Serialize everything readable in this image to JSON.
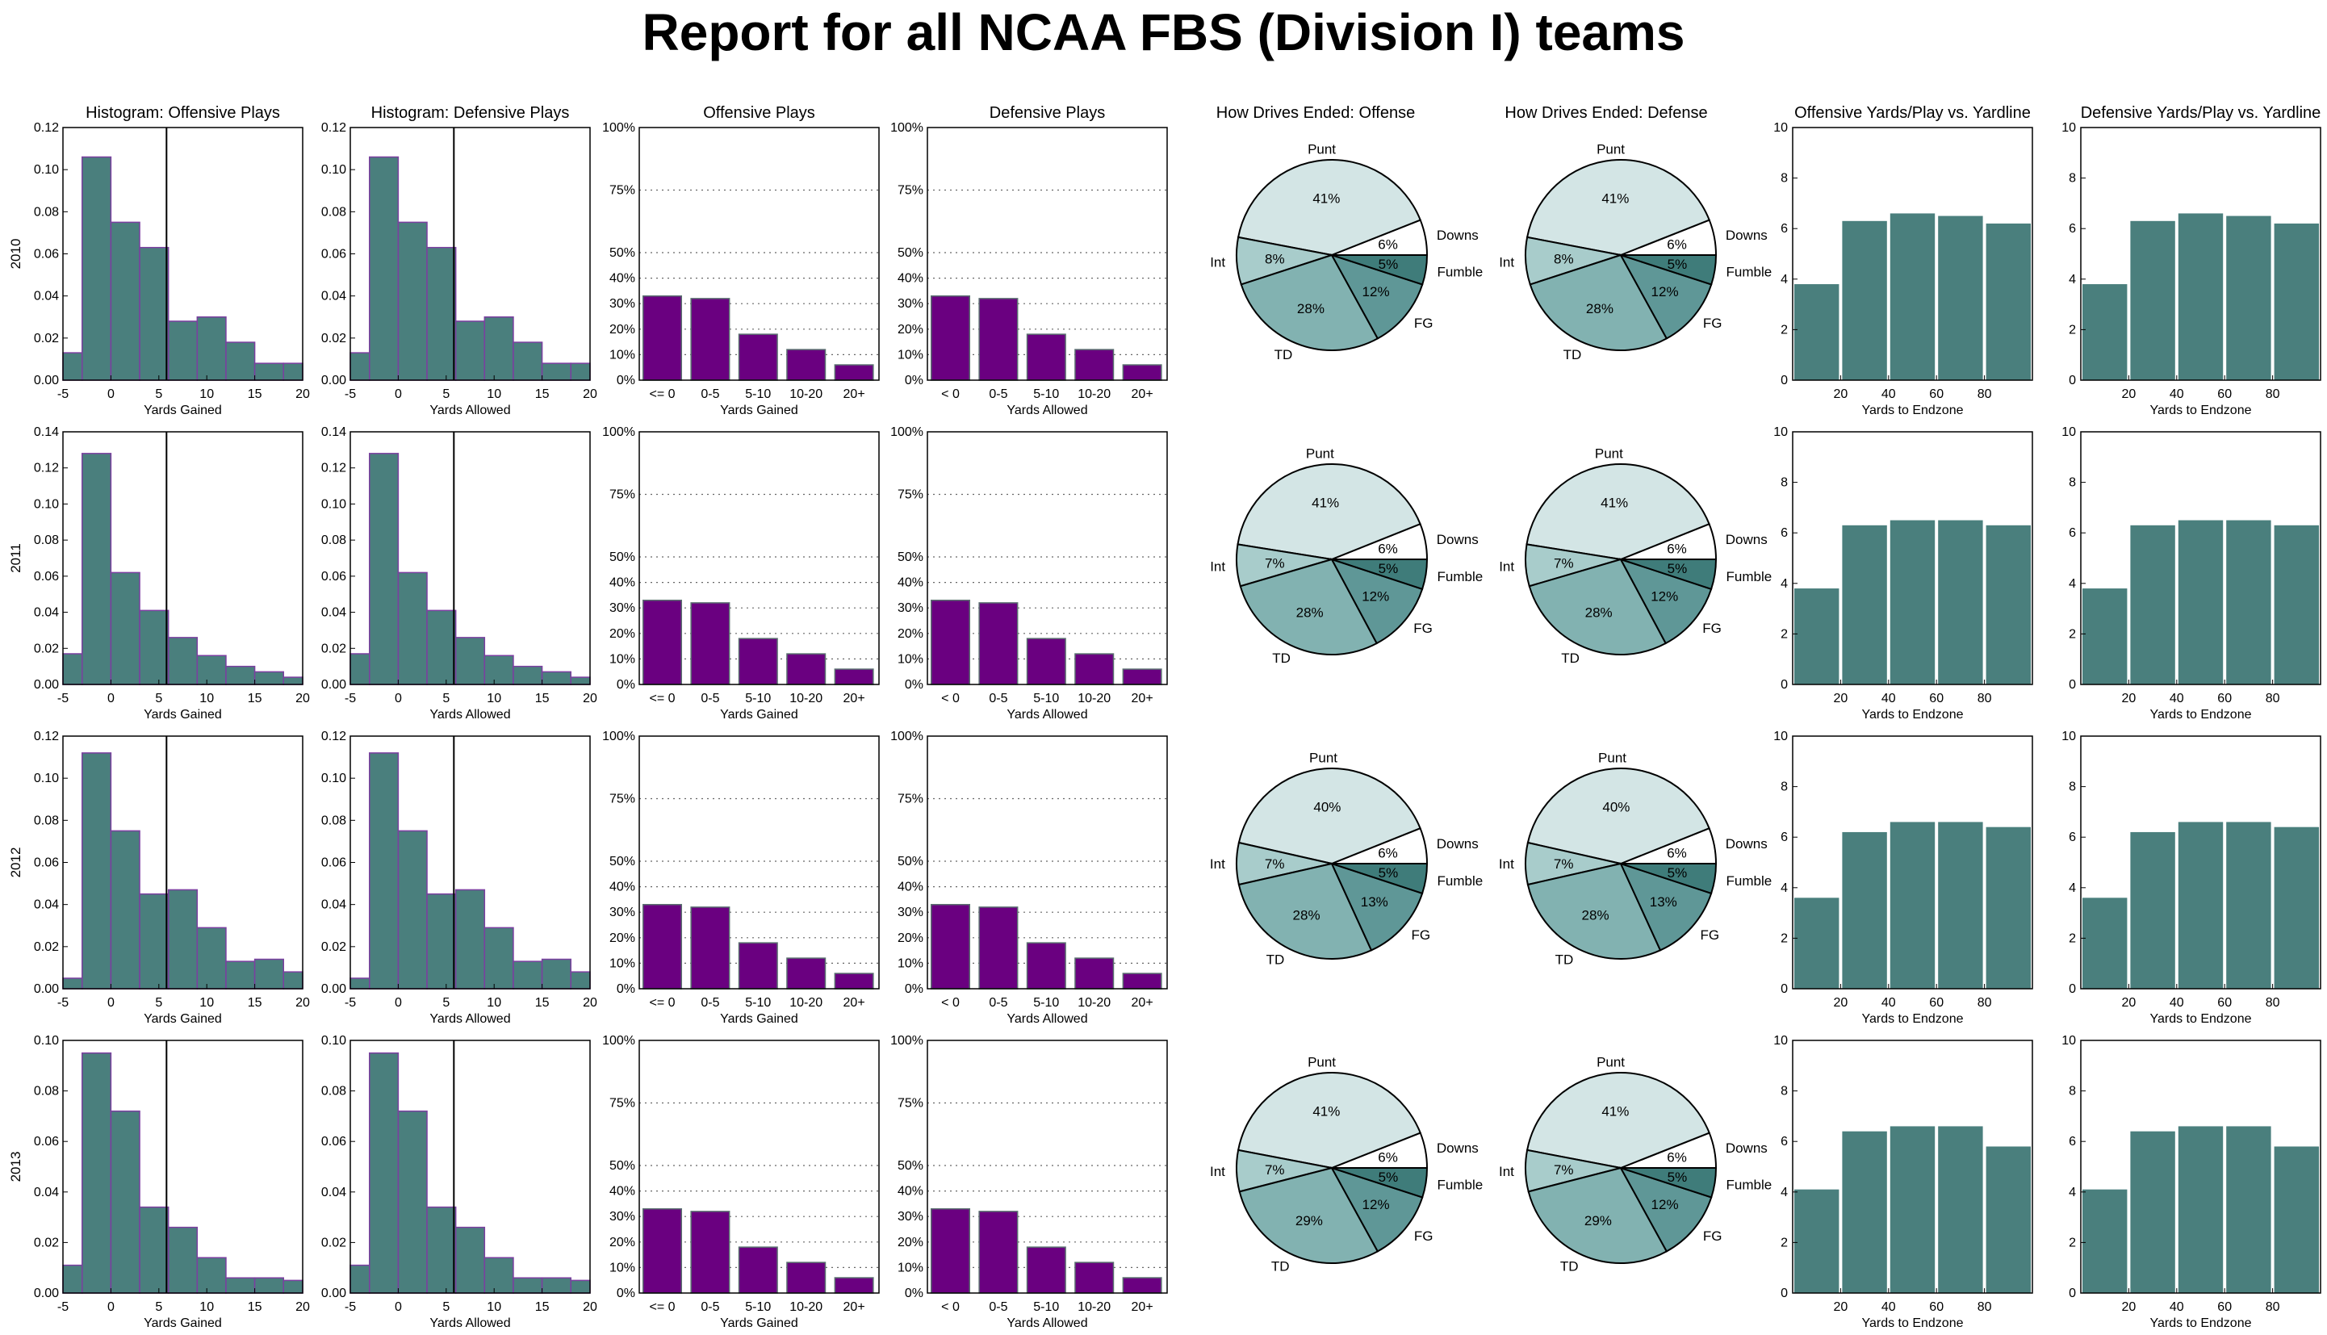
{
  "title": "Report for all NCAA FBS (Division I) teams",
  "colors": {
    "bar": "#4a7f7d",
    "bar_edge": "#7b3fa0",
    "purple": "#6a0080",
    "pie_punt": "#d3e5e5",
    "pie_downs": "#ffffff",
    "pie_fumble": "#3f7c7a",
    "pie_fg": "#5f9797",
    "pie_td": "#82b2b1",
    "pie_int": "#a8cccb"
  },
  "column_titles": [
    "Histogram: Offensive Plays",
    "Histogram: Defensive Plays",
    "Offensive Plays",
    "Defensive Plays",
    "How Drives Ended: Offense",
    "How Drives Ended: Defense",
    "Offensive Yards/Play vs. Yardline",
    "Defensive Yards/Play vs. Yardline"
  ],
  "row_labels": [
    "2010",
    "2011",
    "2012",
    "2013"
  ],
  "xlabels": {
    "hist_off": "Yards Gained",
    "hist_def": "Yards Allowed",
    "cat_off": "Yards Gained",
    "cat_def": "Yards Allowed",
    "yard": "Yards to Endzone"
  },
  "cat_categories_off": [
    "<= 0",
    "0-5",
    "5-10",
    "10-20",
    "20+"
  ],
  "cat_categories_def": [
    "< 0",
    "0-5",
    "5-10",
    "10-20",
    "20+"
  ],
  "cat_yticks": [
    "0%",
    "10%",
    "20%",
    "30%",
    "40%",
    "50%",
    "75%",
    "100%"
  ],
  "hist_xticks": [
    "-5",
    "0",
    "5",
    "10",
    "15",
    "20"
  ],
  "yard_xticks": [
    "20",
    "40",
    "60",
    "80"
  ],
  "yard_yticks": [
    "0",
    "2",
    "4",
    "6",
    "8",
    "10"
  ],
  "chart_data": [
    {
      "year": "2010",
      "histogram": {
        "type": "bar",
        "bin_edges": [
          -5,
          -3,
          0,
          3,
          6,
          9,
          12,
          15,
          18,
          20
        ],
        "values": [
          0.013,
          0.106,
          0.075,
          0.063,
          0.028,
          0.03,
          0.018,
          0.008,
          0.008
        ],
        "ylim": [
          0,
          0.12
        ],
        "yticks": [
          "0.00",
          "0.02",
          "0.04",
          "0.06",
          "0.08",
          "0.10",
          "0.12"
        ],
        "mean_line": 5.8
      },
      "play_distribution": {
        "type": "bar",
        "values_percent": [
          33,
          32,
          18,
          12,
          6
        ]
      },
      "drive_results": {
        "type": "pie",
        "labels": [
          "Punt",
          "Downs",
          "Fumble",
          "FG",
          "TD",
          "Int"
        ],
        "percent_labels": [
          "41%",
          "6%",
          "5%",
          "12%",
          "28%",
          "8%"
        ],
        "values": [
          41,
          6,
          5,
          12,
          28,
          8
        ]
      },
      "yards_per_play": {
        "type": "bar",
        "x": [
          10,
          30,
          50,
          70,
          90
        ],
        "values": [
          3.8,
          6.3,
          6.6,
          6.5,
          6.2
        ],
        "ylim": [
          0,
          10
        ]
      }
    },
    {
      "year": "2011",
      "histogram": {
        "type": "bar",
        "bin_edges": [
          -5,
          -3,
          0,
          3,
          6,
          9,
          12,
          15,
          18,
          20
        ],
        "values": [
          0.017,
          0.128,
          0.062,
          0.041,
          0.026,
          0.016,
          0.01,
          0.007,
          0.004
        ],
        "ylim": [
          0,
          0.14
        ],
        "yticks": [
          "0.00",
          "0.02",
          "0.04",
          "0.06",
          "0.08",
          "0.10",
          "0.12",
          "0.14"
        ],
        "mean_line": 5.8
      },
      "play_distribution": {
        "type": "bar",
        "values_percent": [
          33,
          32,
          18,
          12,
          6
        ]
      },
      "drive_results": {
        "type": "pie",
        "labels": [
          "Punt",
          "Downs",
          "Fumble",
          "FG",
          "TD",
          "Int"
        ],
        "percent_labels": [
          "41%",
          "6%",
          "5%",
          "12%",
          "28%",
          "7%"
        ],
        "values": [
          41,
          6,
          5,
          12,
          28,
          7
        ]
      },
      "yards_per_play": {
        "type": "bar",
        "x": [
          10,
          30,
          50,
          70,
          90
        ],
        "values": [
          3.8,
          6.3,
          6.5,
          6.5,
          6.3
        ],
        "ylim": [
          0,
          10
        ]
      }
    },
    {
      "year": "2012",
      "histogram": {
        "type": "bar",
        "bin_edges": [
          -5,
          -3,
          0,
          3,
          6,
          9,
          12,
          15,
          18,
          20
        ],
        "values": [
          0.005,
          0.112,
          0.075,
          0.045,
          0.047,
          0.029,
          0.013,
          0.014,
          0.008
        ],
        "ylim": [
          0,
          0.12
        ],
        "yticks": [
          "0.00",
          "0.02",
          "0.04",
          "0.06",
          "0.08",
          "0.10",
          "0.12"
        ],
        "mean_line": 5.8
      },
      "play_distribution": {
        "type": "bar",
        "values_percent": [
          33,
          32,
          18,
          12,
          6
        ]
      },
      "drive_results": {
        "type": "pie",
        "labels": [
          "Punt",
          "Downs",
          "Fumble",
          "FG",
          "TD",
          "Int"
        ],
        "percent_labels": [
          "40%",
          "6%",
          "5%",
          "13%",
          "28%",
          "7%"
        ],
        "values": [
          40,
          6,
          5,
          13,
          28,
          7
        ]
      },
      "yards_per_play": {
        "type": "bar",
        "x": [
          10,
          30,
          50,
          70,
          90
        ],
        "values": [
          3.6,
          6.2,
          6.6,
          6.6,
          6.4
        ],
        "ylim": [
          0,
          10
        ]
      }
    },
    {
      "year": "2013",
      "histogram": {
        "type": "bar",
        "bin_edges": [
          -5,
          -3,
          0,
          3,
          6,
          9,
          12,
          15,
          18,
          20
        ],
        "values": [
          0.011,
          0.095,
          0.072,
          0.034,
          0.026,
          0.014,
          0.006,
          0.006,
          0.005
        ],
        "ylim": [
          0,
          0.1
        ],
        "yticks": [
          "0.00",
          "0.02",
          "0.04",
          "0.06",
          "0.08",
          "0.10"
        ],
        "mean_line": 5.8
      },
      "play_distribution": {
        "type": "bar",
        "values_percent": [
          33,
          32,
          18,
          12,
          6
        ]
      },
      "drive_results": {
        "type": "pie",
        "labels": [
          "Punt",
          "Downs",
          "Fumble",
          "FG",
          "TD",
          "Int"
        ],
        "percent_labels": [
          "41%",
          "6%",
          "5%",
          "12%",
          "29%",
          "7%"
        ],
        "values": [
          41,
          6,
          5,
          12,
          29,
          7
        ]
      },
      "yards_per_play": {
        "type": "bar",
        "x": [
          10,
          30,
          50,
          70,
          90
        ],
        "values": [
          4.1,
          6.4,
          6.6,
          6.6,
          5.8
        ],
        "ylim": [
          0,
          10
        ]
      }
    }
  ]
}
